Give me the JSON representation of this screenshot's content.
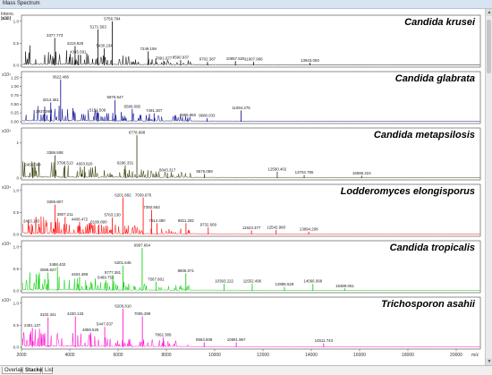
{
  "window": {
    "title": "Mass Spectrum"
  },
  "tabs": [
    {
      "label": "Overlaid"
    },
    {
      "label": "Stacked"
    },
    {
      "label": "List"
    }
  ],
  "yaxis_title": "Intens.\n[a.u.]",
  "chart_data": {
    "type": "line",
    "xlabel": "m/z",
    "xlim": [
      2000,
      21000
    ],
    "x_ticks": [
      2000,
      4000,
      6000,
      8000,
      10000,
      12000,
      14000,
      16000,
      18000,
      20000
    ],
    "panels": [
      {
        "name": "Candida krusei",
        "color": "#000000",
        "y_exponent": "x10⁴",
        "ylim": [
          0,
          1.35
        ],
        "y_ticks": [
          "0.0",
          "0.5",
          "1.0"
        ],
        "peaks": [
          {
            "mz": 3377.773,
            "label": "3377.773",
            "h": 0.78
          },
          {
            "mz": 4219.929,
            "label": "4219.929",
            "h": 0.55
          },
          {
            "mz": 4345.581,
            "label": "4345.581",
            "h": 0.3
          },
          {
            "mz": 5430.234,
            "label": "5430.234",
            "h": 0.48
          },
          {
            "mz": 5171.563,
            "label": "5171.563",
            "h": 1.02
          },
          {
            "mz": 5756.784,
            "label": "5756.784",
            "h": 1.25
          },
          {
            "mz": 7249.159,
            "label": "7249.159",
            "h": 0.4
          },
          {
            "mz": 7891.077,
            "label": "7891.077",
            "h": 0.13
          },
          {
            "mz": 8590.937,
            "label": "8590.937",
            "h": 0.15
          },
          {
            "mz": 9702.387,
            "label": "9702.387",
            "h": 0.1
          },
          {
            "mz": 10857.525,
            "label": "10857.525",
            "h": 0.12
          },
          {
            "mz": 11607.968,
            "label": "11607.968",
            "h": 0.1
          },
          {
            "mz": 13943.093,
            "label": "13943.093",
            "h": 0.07
          }
        ]
      },
      {
        "name": "Candida glabrata",
        "color": "#00008b",
        "y_exponent": "x10⁴",
        "ylim": [
          0,
          1.35
        ],
        "y_ticks": [
          "0.00",
          "0.25",
          "0.50",
          "0.75",
          "1.00",
          "1.25"
        ],
        "peaks": [
          {
            "mz": 2937.986,
            "label": "2937.986",
            "h": 0.22
          },
          {
            "mz": 3213.361,
            "label": "3213.361",
            "h": 0.55
          },
          {
            "mz": 3622.486,
            "label": "3622.486",
            "h": 1.2
          },
          {
            "mz": 5151.506,
            "label": "5151.506",
            "h": 0.25
          },
          {
            "mz": 5876.547,
            "label": "5876.547",
            "h": 0.62
          },
          {
            "mz": 6586.095,
            "label": "6586.095",
            "h": 0.36
          },
          {
            "mz": 7491.307,
            "label": "7491.307",
            "h": 0.24
          },
          {
            "mz": 8885.85,
            "label": "8885.850",
            "h": 0.12
          },
          {
            "mz": 9680.033,
            "label": "9680.033",
            "h": 0.1
          },
          {
            "mz": 11094.275,
            "label": "11094.275",
            "h": 0.32
          }
        ]
      },
      {
        "name": "Candida metapsilosis",
        "color": "#2b3a00",
        "y_exponent": "x10⁴",
        "ylim": [
          0,
          1.35
        ],
        "y_ticks": [
          "0",
          "1"
        ],
        "peaks": [
          {
            "mz": 2465.584,
            "label": "2465.584",
            "h": 0.3
          },
          {
            "mz": 3386.508,
            "label": "3386.508",
            "h": 0.65
          },
          {
            "mz": 3798.513,
            "label": "3798.513",
            "h": 0.36
          },
          {
            "mz": 4603.82,
            "label": "4603.820",
            "h": 0.33
          },
          {
            "mz": 6296.331,
            "label": "6296.331",
            "h": 0.36
          },
          {
            "mz": 6778.688,
            "label": "6778.688",
            "h": 1.22
          },
          {
            "mz": 8043.317,
            "label": "8043.317",
            "h": 0.15
          },
          {
            "mz": 9576.089,
            "label": "9576.089",
            "h": 0.12
          },
          {
            "mz": 12590.402,
            "label": "12590.402",
            "h": 0.18
          },
          {
            "mz": 13704.795,
            "label": "13704.795",
            "h": 0.09
          },
          {
            "mz": 16085.224,
            "label": "16085.224",
            "h": 0.07
          }
        ]
      },
      {
        "name": "Lodderomyces elongisporus",
        "color": "#ff0000",
        "y_exponent": "x10⁴",
        "ylim": [
          0,
          1.35
        ],
        "y_ticks": [
          "0.0",
          "0.5",
          "1.0"
        ],
        "peaks": [
          {
            "mz": 2413.143,
            "label": "2413.143",
            "h": 0.3
          },
          {
            "mz": 3385.807,
            "label": "3385.807",
            "h": 0.85
          },
          {
            "mz": 3807.211,
            "label": "3807.211",
            "h": 0.5
          },
          {
            "mz": 4406.472,
            "label": "4406.472",
            "h": 0.36
          },
          {
            "mz": 5199.89,
            "label": "5199.890",
            "h": 0.28
          },
          {
            "mz": 5763.13,
            "label": "5763.130",
            "h": 0.48
          },
          {
            "mz": 6201.892,
            "label": "6201.892",
            "h": 1.05
          },
          {
            "mz": 7039.676,
            "label": "7039.676",
            "h": 1.05
          },
          {
            "mz": 7392.563,
            "label": "7392.563",
            "h": 0.7
          },
          {
            "mz": 7614.48,
            "label": "7614.480",
            "h": 0.32
          },
          {
            "mz": 8811.282,
            "label": "8811.282",
            "h": 0.32
          },
          {
            "mz": 9732.609,
            "label": "9732.609",
            "h": 0.2
          },
          {
            "mz": 11523.377,
            "label": "11523.377",
            "h": 0.12
          },
          {
            "mz": 12542.98,
            "label": "12542.980",
            "h": 0.13
          },
          {
            "mz": 13894.298,
            "label": "13894.298",
            "h": 0.08
          }
        ]
      },
      {
        "name": "Candida tropicalis",
        "color": "#00cc00",
        "y_exponent": "x10⁴",
        "ylim": [
          0,
          1.35
        ],
        "y_ticks": [
          "0.0",
          "0.5",
          "1.0"
        ],
        "peaks": [
          {
            "mz": 3099.827,
            "label": "3099.827",
            "h": 0.52
          },
          {
            "mz": 3488.402,
            "label": "3488.402",
            "h": 0.68
          },
          {
            "mz": 4404.498,
            "label": "4404.498",
            "h": 0.4
          },
          {
            "mz": 5489.753,
            "label": "5489.753",
            "h": 0.3
          },
          {
            "mz": 5777.381,
            "label": "5777.381",
            "h": 0.45
          },
          {
            "mz": 6201.645,
            "label": "6201.645",
            "h": 0.72
          },
          {
            "mz": 6997.664,
            "label": "6997.664",
            "h": 1.22
          },
          {
            "mz": 7567.801,
            "label": "7567.801",
            "h": 0.26
          },
          {
            "mz": 8806.071,
            "label": "8806.071",
            "h": 0.5
          },
          {
            "mz": 10393.222,
            "label": "10393.222",
            "h": 0.2
          },
          {
            "mz": 11552.496,
            "label": "11552.496",
            "h": 0.2
          },
          {
            "mz": 12885.529,
            "label": "12885.529",
            "h": 0.11
          },
          {
            "mz": 14066.099,
            "label": "14066.099",
            "h": 0.2
          },
          {
            "mz": 15389.051,
            "label": "15389.051",
            "h": 0.07
          }
        ]
      },
      {
        "name": "Trichosporon asahii",
        "color": "#ff00cc",
        "y_exponent": "x10⁴",
        "ylim": [
          0,
          1.35
        ],
        "y_ticks": [
          "0.0",
          "0.5",
          "1.0"
        ],
        "peaks": [
          {
            "mz": 2451.127,
            "label": "2451.127",
            "h": 0.55
          },
          {
            "mz": 3102.341,
            "label": "3102.341",
            "h": 0.85
          },
          {
            "mz": 4230.133,
            "label": "4230.133",
            "h": 0.88
          },
          {
            "mz": 4859.525,
            "label": "4859.525",
            "h": 0.42
          },
          {
            "mz": 5447.037,
            "label": "5447.037",
            "h": 0.58
          },
          {
            "mz": 6206.81,
            "label": "6206.810",
            "h": 1.1
          },
          {
            "mz": 7005.299,
            "label": "7005.299",
            "h": 0.88
          },
          {
            "mz": 7862.389,
            "label": "7862.389",
            "h": 0.28
          },
          {
            "mz": 9563.509,
            "label": "9563.509",
            "h": 0.14
          },
          {
            "mz": 10891.967,
            "label": "10891.967",
            "h": 0.14
          },
          {
            "mz": 14511.743,
            "label": "14511.743",
            "h": 0.11
          }
        ]
      }
    ]
  }
}
